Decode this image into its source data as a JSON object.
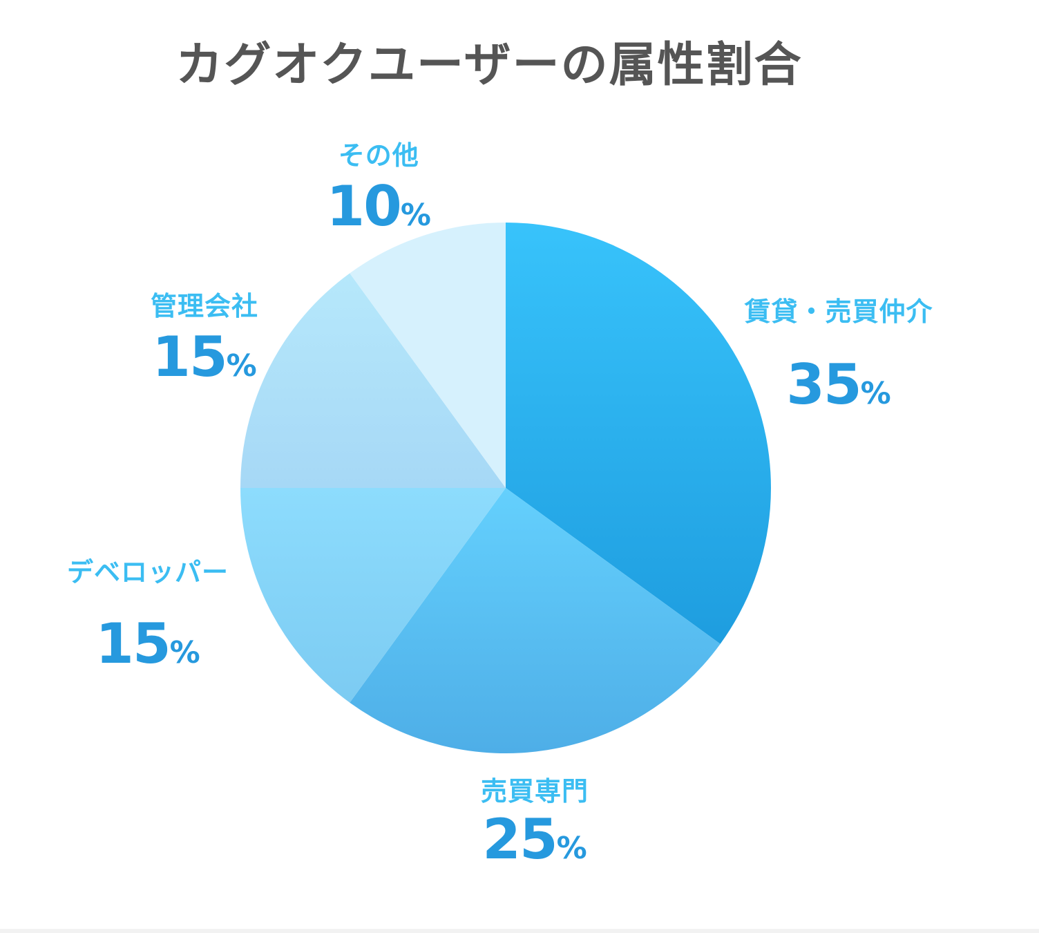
{
  "chart_data": {
    "type": "pie",
    "title": "カグオクユーザーの属性割合",
    "unit": "%",
    "slices": [
      {
        "label": "賃貸・売買仲介",
        "value": 35,
        "color_top": "#38c3fb",
        "color_bottom": "#1e9ddf"
      },
      {
        "label": "売買専門",
        "value": 25,
        "color_top": "#64d0fd",
        "color_bottom": "#4eaee7"
      },
      {
        "label": "デベロッパー",
        "value": 15,
        "color_top": "#8ddcfd",
        "color_bottom": "#7ccbf2"
      },
      {
        "label": "管理会社",
        "value": 15,
        "color_top": "#b6e8fb",
        "color_bottom": "#a6d8f6"
      },
      {
        "label": "その他",
        "value": 10,
        "color_top": "#d6f1fd",
        "color_bottom": "#d6f1fd"
      }
    ]
  },
  "colors": {
    "title_text": "#555555",
    "label_text": "#3bbdf2",
    "percent_text": "#2699de"
  }
}
